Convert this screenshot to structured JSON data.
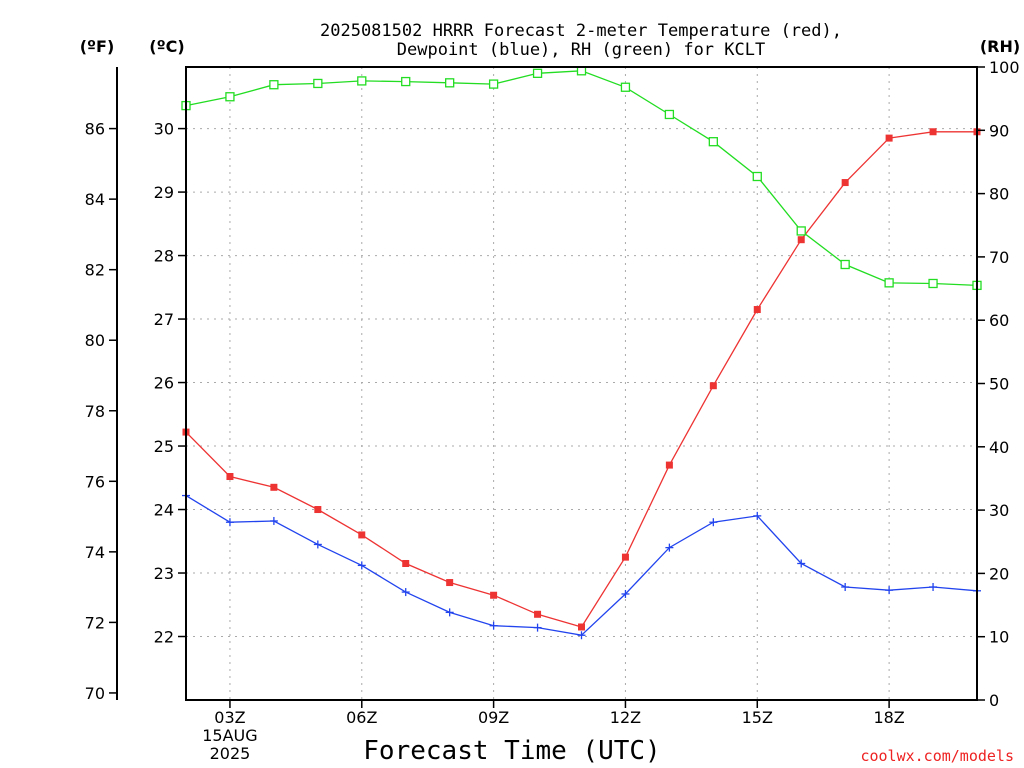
{
  "chart_data": {
    "type": "line",
    "title": [
      "2025081502 HRRR Forecast 2-meter Temperature (red),",
      "Dewpoint (blue), RH (green) for KCLT"
    ],
    "xlabel": "Forecast Time (UTC)",
    "credit": "coolwx.com/models",
    "unit_labels": {
      "left_outer": "(ºF)",
      "left_inner": "(ºC)",
      "right": "(RH)"
    },
    "x_ticks": [
      {
        "hour": 3,
        "lines": [
          "03Z",
          "15AUG",
          "2025"
        ]
      },
      {
        "hour": 6,
        "lines": [
          "06Z"
        ]
      },
      {
        "hour": 9,
        "lines": [
          "09Z"
        ]
      },
      {
        "hour": 12,
        "lines": [
          "12Z"
        ]
      },
      {
        "hour": 15,
        "lines": [
          "15Z"
        ]
      },
      {
        "hour": 18,
        "lines": [
          "18Z"
        ]
      }
    ],
    "x_hours": [
      2,
      3,
      4,
      5,
      6,
      7,
      8,
      9,
      10,
      11,
      12,
      13,
      14,
      15,
      16,
      17,
      18,
      19,
      20
    ],
    "xlim": [
      2,
      20
    ],
    "celsius_axis": {
      "ticks": [
        22,
        23,
        24,
        25,
        26,
        27,
        28,
        29,
        30
      ],
      "ylim": [
        21.0,
        30.97
      ]
    },
    "fahrenheit_axis": {
      "ticks": [
        70,
        72,
        74,
        76,
        78,
        80,
        82,
        84,
        86
      ]
    },
    "rh_axis": {
      "ticks": [
        0,
        10,
        20,
        30,
        40,
        50,
        60,
        70,
        80,
        90,
        100
      ],
      "ylim": [
        0,
        100
      ]
    },
    "grid": true,
    "series": [
      {
        "key": "temperature",
        "axis": "celsius",
        "color": "#ee3333",
        "marker": "filled-square",
        "values": [
          25.22,
          24.52,
          24.35,
          24.0,
          23.6,
          23.15,
          22.85,
          22.65,
          22.35,
          22.15,
          23.25,
          24.7,
          25.95,
          27.15,
          28.25,
          29.15,
          29.85,
          29.95,
          29.95
        ]
      },
      {
        "key": "dewpoint",
        "axis": "celsius",
        "color": "#2244ee",
        "marker": "plus",
        "values": [
          24.22,
          23.8,
          23.82,
          23.45,
          23.12,
          22.7,
          22.38,
          22.17,
          22.14,
          22.02,
          22.67,
          23.4,
          23.8,
          23.9,
          23.15,
          22.78,
          22.73,
          22.78,
          22.72
        ]
      },
      {
        "key": "relative_humidity",
        "axis": "rh",
        "color": "#22dd22",
        "marker": "open-square",
        "values": [
          93.9,
          95.3,
          97.2,
          97.4,
          97.8,
          97.7,
          97.5,
          97.3,
          99.0,
          99.4,
          96.8,
          92.5,
          88.2,
          82.7,
          74.1,
          68.8,
          65.9,
          65.8,
          65.5
        ]
      }
    ]
  }
}
